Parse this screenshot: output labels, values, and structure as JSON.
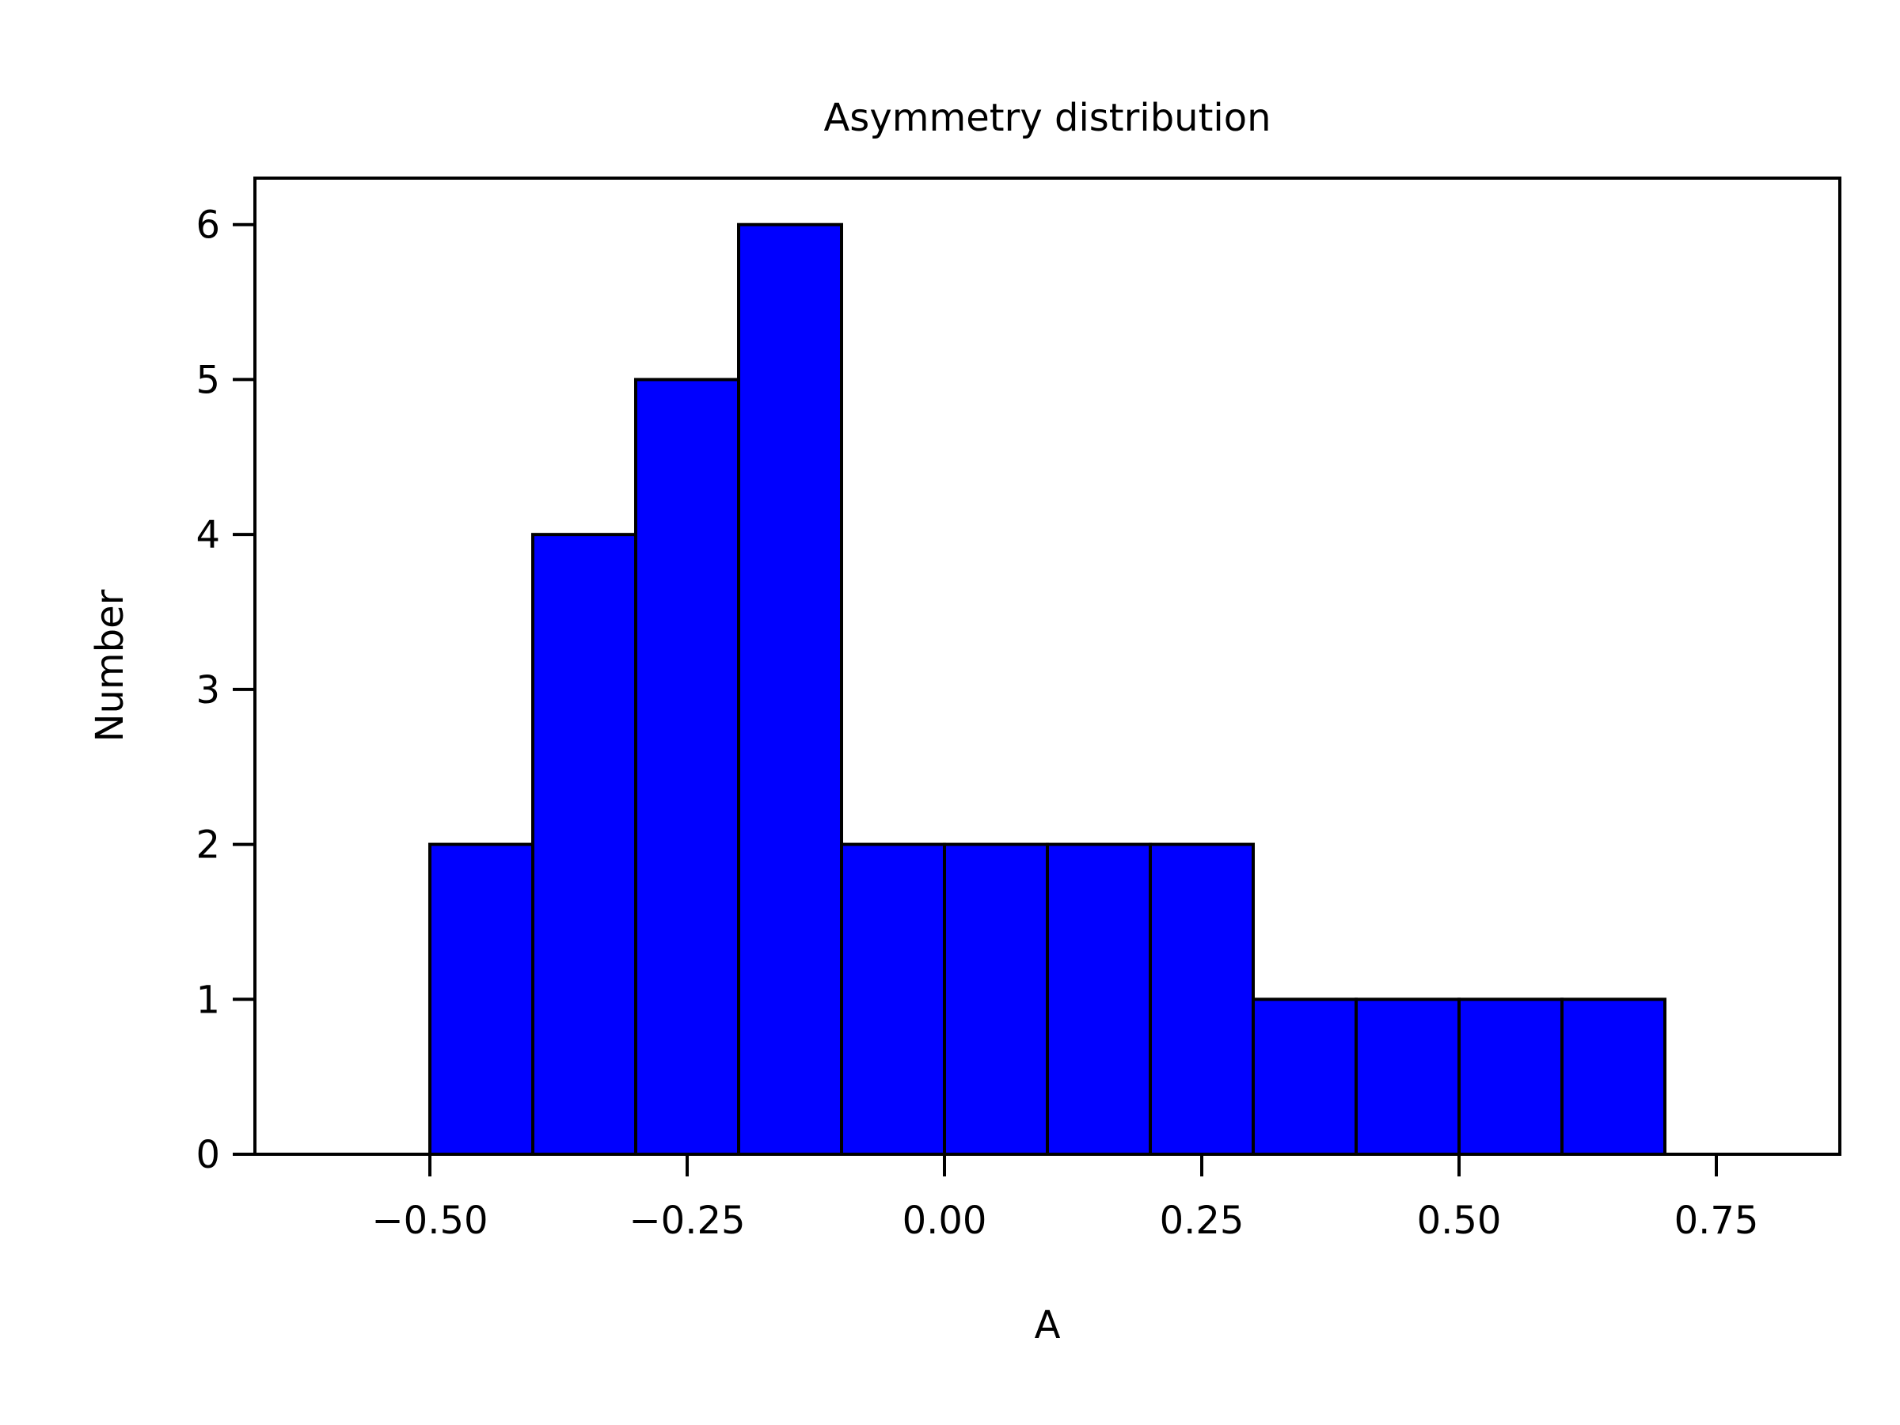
{
  "chart_data": {
    "type": "bar",
    "title": "Asymmetry distribution",
    "xlabel": "A",
    "ylabel": "Number",
    "xlim": [
      -0.67,
      0.87
    ],
    "ylim": [
      0,
      6.3
    ],
    "bin_edges": [
      -0.6,
      -0.5,
      -0.4,
      -0.3,
      -0.2,
      -0.1,
      0.0,
      0.1,
      0.2,
      0.3,
      0.4,
      0.5,
      0.6,
      0.7,
      0.8
    ],
    "counts": [
      0,
      2,
      4,
      5,
      6,
      2,
      2,
      2,
      2,
      1,
      1,
      1,
      1,
      0
    ],
    "x_ticks": [
      -0.5,
      -0.25,
      0.0,
      0.25,
      0.5,
      0.75
    ],
    "x_tick_labels": [
      "−0.50",
      "−0.25",
      "0.00",
      "0.25",
      "0.50",
      "0.75"
    ],
    "y_ticks": [
      0,
      1,
      2,
      3,
      4,
      5,
      6
    ],
    "y_tick_labels": [
      "0",
      "1",
      "2",
      "3",
      "4",
      "5",
      "6"
    ],
    "grid": false,
    "bar_color": "#0000ff",
    "edge_color": "#000000"
  }
}
